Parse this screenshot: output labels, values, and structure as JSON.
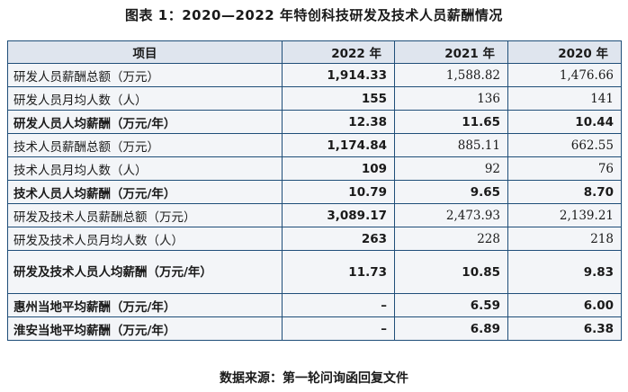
{
  "title": "图表 1：2020—2022 年特创科技研发及技术人员薪酬情况",
  "table": {
    "headers": [
      "项目",
      "2022 年",
      "2021 年",
      "2020 年"
    ],
    "rows": [
      {
        "label": "研发人员薪酬总额（万元）",
        "v2022": "1,914.33",
        "v2021": "1,588.82",
        "v2020": "1,476.66",
        "bold": false
      },
      {
        "label": "研发人员月均人数（人）",
        "v2022": "155",
        "v2021": "136",
        "v2020": "141",
        "bold": false
      },
      {
        "label": "研发人员人均薪酬（万元/年）",
        "v2022": "12.38",
        "v2021": "11.65",
        "v2020": "10.44",
        "bold": true
      },
      {
        "label": "技术人员薪酬总额（万元）",
        "v2022": "1,174.84",
        "v2021": "885.11",
        "v2020": "662.55",
        "bold": false
      },
      {
        "label": "技术人员月均人数（人）",
        "v2022": "109",
        "v2021": "92",
        "v2020": "76",
        "bold": false
      },
      {
        "label": "技术人员人均薪酬（万元/年）",
        "v2022": "10.79",
        "v2021": "9.65",
        "v2020": "8.70",
        "bold": true
      },
      {
        "label": "研发及技术人员薪酬总额（万元）",
        "v2022": "3,089.17",
        "v2021": "2,473.93",
        "v2020": "2,139.21",
        "bold": false
      },
      {
        "label": "研发及技术人员月均人数（人）",
        "v2022": "263",
        "v2021": "228",
        "v2020": "218",
        "bold": false
      },
      {
        "label": "研发及技术人员人均薪酬（万元/年）",
        "v2022": "11.73",
        "v2021": "10.85",
        "v2020": "9.83",
        "bold": true
      },
      {
        "label": "惠州当地平均薪酬（万元/年）",
        "v2022": "–",
        "v2021": "6.59",
        "v2020": "6.00",
        "bold": true
      },
      {
        "label": "淮安当地平均薪酬（万元/年）",
        "v2022": "–",
        "v2021": "6.89",
        "v2020": "6.38",
        "bold": true
      }
    ]
  },
  "source": "数据来源：第一轮问询函回复文件"
}
